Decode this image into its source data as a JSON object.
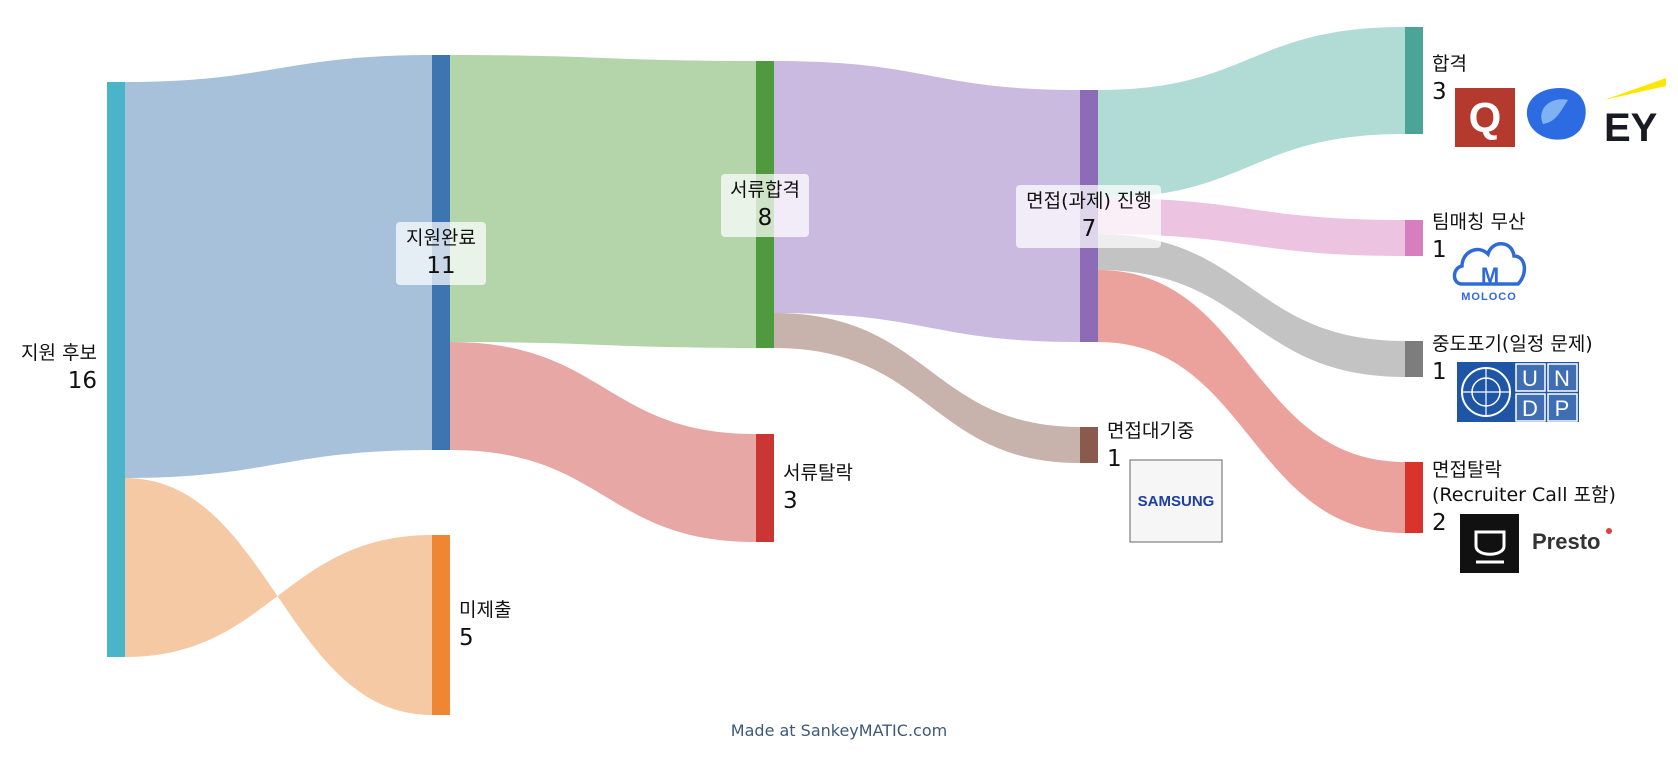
{
  "diagram": {
    "type": "sankey",
    "nodes": [
      {
        "id": "n0",
        "name": "지원 후보",
        "value": "16",
        "color": "#4ab5c8"
      },
      {
        "id": "n1",
        "name": "지원완료",
        "value": "11",
        "color": "#3d75b0"
      },
      {
        "id": "n2",
        "name": "미제출",
        "value": "5",
        "color": "#ef8634"
      },
      {
        "id": "n3",
        "name": "서류합격",
        "value": "8",
        "color": "#4f9a3c"
      },
      {
        "id": "n4",
        "name": "서류탈락",
        "value": "3",
        "color": "#c93633"
      },
      {
        "id": "n5",
        "name": "면접(과제) 진행",
        "value": "7",
        "color": "#8d6cb7"
      },
      {
        "id": "n6",
        "name": "면접대기중",
        "value": "1",
        "color": "#8b5a4e"
      },
      {
        "id": "n7",
        "name": "합격",
        "value": "3",
        "color": "#4aa597"
      },
      {
        "id": "n8",
        "name": "팀매칭 무산",
        "value": "1",
        "color": "#d57fbe"
      },
      {
        "id": "n9",
        "name": "중도포기(일정 문제)",
        "value": "1",
        "color": "#7d7d7d"
      },
      {
        "id": "n10",
        "name_line1": "면접탈락",
        "name_line2": "(Recruiter Call 포함)",
        "value": "2",
        "color": "#d9342b"
      }
    ],
    "flows": [
      {
        "from": "지원 후보",
        "to": "지원완료",
        "value": 11,
        "color": "#a7c1da"
      },
      {
        "from": "지원 후보",
        "to": "미제출",
        "value": 5,
        "color": "#f5c9a4"
      },
      {
        "from": "지원완료",
        "to": "서류합격",
        "value": 8,
        "color": "#b3d5a9"
      },
      {
        "from": "지원완료",
        "to": "서류탈락",
        "value": 3,
        "color": "#e6a7a5"
      },
      {
        "from": "서류합격",
        "to": "면접(과제) 진행",
        "value": 7,
        "color": "#cbbae0"
      },
      {
        "from": "서류합격",
        "to": "면접대기중",
        "value": 1,
        "color": "#c8b2ac"
      },
      {
        "from": "면접(과제) 진행",
        "to": "합격",
        "value": 3,
        "color": "#b1dbd5"
      },
      {
        "from": "면접(과제) 진행",
        "to": "팀매칭 무산",
        "value": 1,
        "color": "#ecc4e2"
      },
      {
        "from": "면접(과제) 진행",
        "to": "중도포기(일정 문제)",
        "value": 1,
        "color": "#c3c3c3"
      },
      {
        "from": "면접(과제) 진행",
        "to": "면접탈락 (Recruiter Call 포함)",
        "value": 2,
        "color": "#eca29c"
      }
    ],
    "logos": {
      "hire": [
        "Q",
        "EY"
      ],
      "team": "MOLOCO",
      "undp": [
        "U",
        "N",
        "D",
        "P"
      ],
      "wait": "SAMSUNG",
      "reject": "Presto"
    },
    "footer": "Made at SankeyMATIC.com"
  }
}
